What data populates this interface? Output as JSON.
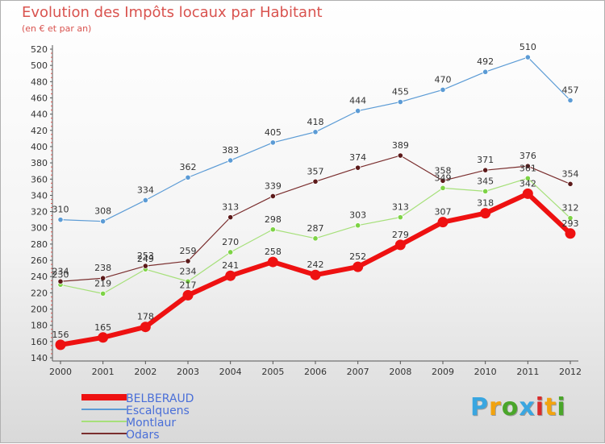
{
  "title": "Evolution des Impôts locaux par Habitant",
  "subtitle": "(en € et par an)",
  "logo": {
    "text": "Proxiti",
    "colors": [
      "#3aa6e0",
      "#f2a30f",
      "#4aa62a",
      "#3aa6e0",
      "#d92b2b",
      "#f2a30f",
      "#4aa62a"
    ]
  },
  "chart_data": {
    "type": "line",
    "title": "Evolution des Impôts locaux par Habitant",
    "subtitle": "(en € et par an)",
    "xlabel": "",
    "ylabel": "",
    "x": [
      "2000",
      "2001",
      "2002",
      "2003",
      "2004",
      "2005",
      "2006",
      "2007",
      "2008",
      "2009",
      "2010",
      "2011",
      "2012"
    ],
    "ylim": [
      140,
      520
    ],
    "yticks": [
      140,
      160,
      180,
      200,
      220,
      240,
      260,
      280,
      300,
      320,
      340,
      360,
      380,
      400,
      420,
      440,
      460,
      480,
      500,
      520
    ],
    "grid": false,
    "legend_position": "bottom-left",
    "series": [
      {
        "name": "Escalquens",
        "color": "#5b9bd5",
        "marker": "#5b9bd5",
        "width": 1.2,
        "show_labels": true,
        "values": [
          310,
          308,
          334,
          362,
          383,
          405,
          418,
          444,
          455,
          470,
          492,
          510,
          457
        ]
      },
      {
        "name": "Montlaur",
        "color": "#a6e07a",
        "marker": "#7dd345",
        "width": 1.2,
        "show_labels": true,
        "values": [
          230,
          219,
          249,
          234,
          270,
          298,
          287,
          303,
          313,
          349,
          345,
          361,
          312
        ]
      },
      {
        "name": "Odars",
        "color": "#7a2e2e",
        "marker": "#5c1a1a",
        "width": 1.2,
        "show_labels": true,
        "values": [
          234,
          238,
          253,
          259,
          313,
          339,
          357,
          374,
          389,
          358,
          371,
          376,
          354
        ]
      },
      {
        "name": "BELBERAUD",
        "color": "#ee1111",
        "marker": "#ee1111",
        "width": 6,
        "show_labels": true,
        "values": [
          156,
          165,
          178,
          217,
          241,
          258,
          242,
          252,
          279,
          307,
          318,
          342,
          293
        ]
      }
    ],
    "legend_order": [
      "BELBERAUD",
      "Escalquens",
      "Montlaur",
      "Odars"
    ]
  }
}
